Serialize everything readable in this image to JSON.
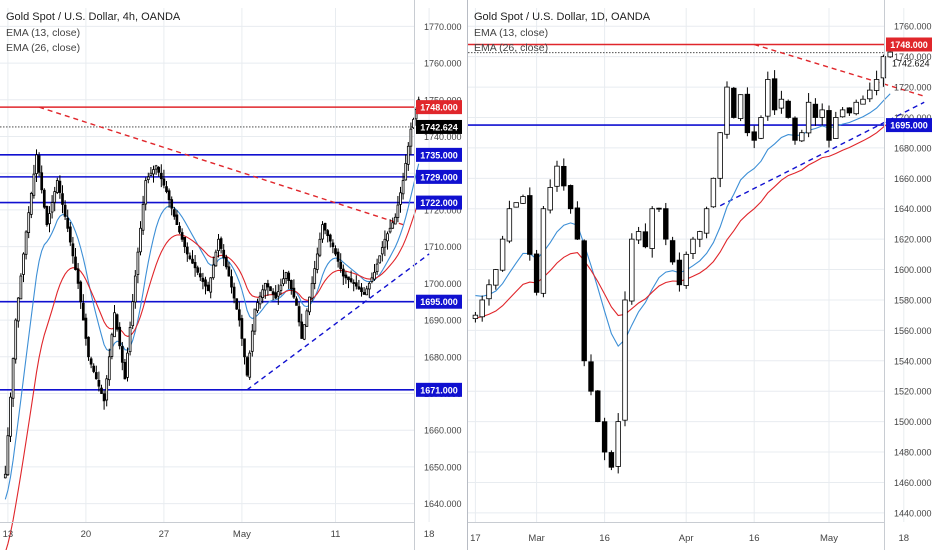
{
  "colors": {
    "up": "#ffffff",
    "down": "#000000",
    "wick": "#000000",
    "ema13": "#3d8fd6",
    "ema26": "#e0262b",
    "support": "#1010d0",
    "resistance": "#e0262b",
    "grid": "#e8ecf0",
    "axis_text": "#444444",
    "last_price_bg": "#000000"
  },
  "chart_data": [
    {
      "type": "candlestick",
      "title": "Gold Spot / U.S. Dollar, 4h, OANDA",
      "legend": [
        "EMA (13, close)",
        "EMA (26, close)"
      ],
      "ylim": [
        1635,
        1775
      ],
      "y_ticks": [
        "1640.000",
        "1650.000",
        "1660.000",
        "1670.000",
        "1680.000",
        "1690.000",
        "1700.000",
        "1710.000",
        "1720.000",
        "1730.000",
        "1740.000",
        "1750.000",
        "1760.000",
        "1770.000"
      ],
      "x_ticks": [
        {
          "label": "13",
          "index": 1
        },
        {
          "label": "20",
          "index": 31
        },
        {
          "label": "27",
          "index": 61
        },
        {
          "label": "May",
          "index": 91
        },
        {
          "label": "11",
          "index": 127
        },
        {
          "label": "18",
          "index": 163
        }
      ],
      "bars": 160,
      "anchors": [
        [
          0,
          1648
        ],
        [
          4,
          1690
        ],
        [
          8,
          1714
        ],
        [
          12,
          1735
        ],
        [
          16,
          1716
        ],
        [
          20,
          1728
        ],
        [
          24,
          1715
        ],
        [
          28,
          1700
        ],
        [
          32,
          1680
        ],
        [
          36,
          1672
        ],
        [
          38,
          1668
        ],
        [
          42,
          1692
        ],
        [
          46,
          1674
        ],
        [
          50,
          1702
        ],
        [
          54,
          1728
        ],
        [
          58,
          1732
        ],
        [
          62,
          1725
        ],
        [
          66,
          1716
        ],
        [
          70,
          1708
        ],
        [
          74,
          1703
        ],
        [
          78,
          1698
        ],
        [
          82,
          1712
        ],
        [
          86,
          1702
        ],
        [
          90,
          1690
        ],
        [
          93,
          1675
        ],
        [
          96,
          1693
        ],
        [
          100,
          1700
        ],
        [
          104,
          1696
        ],
        [
          108,
          1703
        ],
        [
          112,
          1694
        ],
        [
          114,
          1685
        ],
        [
          118,
          1700
        ],
        [
          122,
          1716
        ],
        [
          126,
          1710
        ],
        [
          130,
          1702
        ],
        [
          134,
          1700
        ],
        [
          138,
          1697
        ],
        [
          142,
          1703
        ],
        [
          146,
          1712
        ],
        [
          150,
          1718
        ],
        [
          153,
          1728
        ],
        [
          156,
          1742
        ],
        [
          159,
          1750
        ]
      ],
      "ema13_start": 1640,
      "ema26_start": 1625,
      "horizontal_levels": [
        {
          "label": "1748.000",
          "value": 1748,
          "kind": "resistance"
        },
        {
          "label": "1735.000",
          "value": 1735,
          "kind": "support"
        },
        {
          "label": "1729.000",
          "value": 1729,
          "kind": "support"
        },
        {
          "label": "1722.000",
          "value": 1722,
          "kind": "support"
        },
        {
          "label": "1695.000",
          "value": 1695,
          "kind": "support"
        },
        {
          "label": "1671.000",
          "value": 1671,
          "kind": "support"
        }
      ],
      "last_price": {
        "label": "1742.624",
        "value": 1742.6
      },
      "trendlines": [
        {
          "kind": "resistance",
          "from": [
            13,
            1748
          ],
          "to": [
            153,
            1716
          ]
        },
        {
          "kind": "support",
          "from": [
            93,
            1671
          ],
          "to": [
            163,
            1708
          ]
        }
      ]
    },
    {
      "type": "candlestick",
      "title": "Gold Spot / U.S. Dollar, 1D, OANDA",
      "legend": [
        "EMA (13, close)",
        "EMA (26, close)"
      ],
      "ylim": [
        1434,
        1772
      ],
      "y_ticks": [
        "1440.000",
        "1460.000",
        "1480.000",
        "1500.000",
        "1520.000",
        "1540.000",
        "1560.000",
        "1580.000",
        "1600.000",
        "1620.000",
        "1640.000",
        "1660.000",
        "1680.000",
        "1700.000",
        "1720.000",
        "1740.000",
        "1760.000"
      ],
      "x_ticks": [
        {
          "label": "17",
          "index": 0
        },
        {
          "label": "Mar",
          "index": 9
        },
        {
          "label": "16",
          "index": 19
        },
        {
          "label": "Apr",
          "index": 31
        },
        {
          "label": "16",
          "index": 41
        },
        {
          "label": "May",
          "index": 52
        },
        {
          "label": "18",
          "index": 63
        }
      ],
      "bars": 62,
      "anchors": [
        [
          0,
          1570
        ],
        [
          3,
          1600
        ],
        [
          5,
          1640
        ],
        [
          7,
          1648
        ],
        [
          8,
          1610
        ],
        [
          9,
          1585
        ],
        [
          10,
          1640
        ],
        [
          12,
          1668
        ],
        [
          13,
          1655
        ],
        [
          14,
          1640
        ],
        [
          15,
          1620
        ],
        [
          16,
          1540
        ],
        [
          17,
          1520
        ],
        [
          18,
          1500
        ],
        [
          19,
          1480
        ],
        [
          20,
          1470
        ],
        [
          21,
          1500
        ],
        [
          22,
          1580
        ],
        [
          23,
          1620
        ],
        [
          24,
          1625
        ],
        [
          25,
          1615
        ],
        [
          26,
          1640
        ],
        [
          27,
          1640
        ],
        [
          28,
          1620
        ],
        [
          29,
          1605
        ],
        [
          30,
          1590
        ],
        [
          31,
          1610
        ],
        [
          32,
          1620
        ],
        [
          33,
          1625
        ],
        [
          34,
          1640
        ],
        [
          35,
          1660
        ],
        [
          36,
          1690
        ],
        [
          37,
          1720
        ],
        [
          38,
          1700
        ],
        [
          39,
          1715
        ],
        [
          40,
          1690
        ],
        [
          41,
          1685
        ],
        [
          42,
          1700
        ],
        [
          43,
          1725
        ],
        [
          44,
          1705
        ],
        [
          45,
          1712
        ],
        [
          46,
          1700
        ],
        [
          47,
          1685
        ],
        [
          48,
          1690
        ],
        [
          49,
          1710
        ],
        [
          50,
          1700
        ],
        [
          51,
          1705
        ],
        [
          52,
          1685
        ],
        [
          53,
          1700
        ],
        [
          54,
          1705
        ],
        [
          55,
          1703
        ],
        [
          56,
          1710
        ],
        [
          57,
          1712
        ],
        [
          58,
          1718
        ],
        [
          59,
          1725
        ],
        [
          60,
          1740
        ],
        [
          61,
          1743
        ]
      ],
      "ema13_start": 1585,
      "ema26_start": 1568,
      "horizontal_levels": [
        {
          "label": "1748.000",
          "value": 1748,
          "kind": "resistance"
        },
        {
          "label": "1695.000",
          "value": 1695,
          "kind": "support"
        }
      ],
      "last_price": {
        "label": "1742.624",
        "value": 1742.6
      },
      "trendlines": [
        {
          "kind": "resistance",
          "from": [
            41,
            1748
          ],
          "to": [
            66,
            1714
          ]
        },
        {
          "kind": "support",
          "from": [
            36,
            1642
          ],
          "to": [
            66,
            1710
          ]
        }
      ]
    }
  ]
}
